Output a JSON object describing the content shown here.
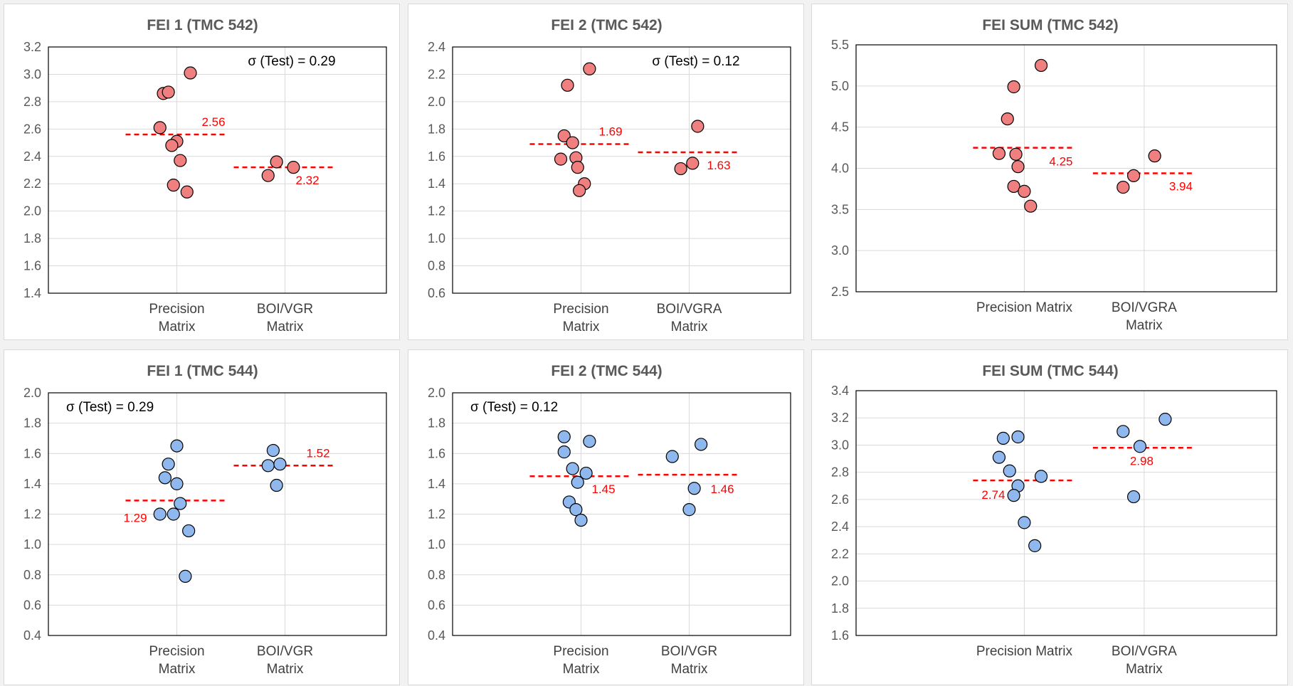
{
  "colors": {
    "pink_fill": "#f08080",
    "blue_fill": "#8fb8ee",
    "mean_line": "#ff0000",
    "point_stroke": "#000000",
    "grid": "#d9d9d9"
  },
  "chart_data": [
    {
      "type": "scatter",
      "title": "FEI 1 (TMC 542)",
      "ylim": [
        1.4,
        3.2
      ],
      "ystep": 0.2,
      "ydecimals": 1,
      "ticks": [
        "1.4",
        "1.6",
        "1.8",
        "2.0",
        "2.2",
        "2.4",
        "2.6",
        "2.8",
        "3.0",
        "3.2"
      ],
      "categories": [
        [
          "Precision",
          "Matrix"
        ],
        [
          "BOI/VGR",
          "Matrix"
        ]
      ],
      "point_color": "pink",
      "annotation": "σ (Test) = 0.29",
      "series": [
        {
          "points": [
            [
              -0.08,
              2.86
            ],
            [
              -0.05,
              2.87
            ],
            [
              0.08,
              3.01
            ],
            [
              -0.1,
              2.61
            ],
            [
              0.0,
              2.51
            ],
            [
              -0.03,
              2.48
            ],
            [
              0.02,
              2.37
            ],
            [
              -0.02,
              2.19
            ],
            [
              0.06,
              2.14
            ]
          ],
          "mean": 2.56,
          "mean_label": "2.56"
        },
        {
          "points": [
            [
              -0.1,
              2.26
            ],
            [
              -0.05,
              2.36
            ],
            [
              0.05,
              2.32
            ]
          ],
          "mean": 2.32,
          "mean_label": "2.32"
        }
      ]
    },
    {
      "type": "scatter",
      "title": "FEI 2 (TMC 542)",
      "ylim": [
        0.6,
        2.4
      ],
      "ystep": 0.2,
      "ydecimals": 1,
      "ticks": [
        "0.6",
        "0.8",
        "1.0",
        "1.2",
        "1.4",
        "1.6",
        "1.8",
        "2.0",
        "2.2",
        "2.4"
      ],
      "categories": [
        [
          "Precision",
          "Matrix"
        ],
        [
          "BOI/VGRA",
          "Matrix"
        ]
      ],
      "point_color": "pink",
      "annotation": "σ (Test) = 0.12",
      "series": [
        {
          "points": [
            [
              -0.08,
              2.12
            ],
            [
              0.05,
              2.24
            ],
            [
              -0.1,
              1.75
            ],
            [
              -0.05,
              1.7
            ],
            [
              -0.12,
              1.58
            ],
            [
              -0.03,
              1.59
            ],
            [
              -0.02,
              1.52
            ],
            [
              0.02,
              1.4
            ],
            [
              -0.01,
              1.35
            ]
          ],
          "mean": 1.69,
          "mean_label": "1.69"
        },
        {
          "points": [
            [
              -0.05,
              1.51
            ],
            [
              0.02,
              1.55
            ],
            [
              0.05,
              1.82
            ]
          ],
          "mean": 1.63,
          "mean_label": "1.63"
        }
      ]
    },
    {
      "type": "scatter",
      "title": "FEI SUM (TMC 542)",
      "ylim": [
        2.5,
        5.5
      ],
      "ystep": 0.5,
      "ydecimals": 1,
      "ticks": [
        "2.5",
        "3.0",
        "3.5",
        "4.0",
        "4.5",
        "5.0",
        "5.5"
      ],
      "categories": [
        [
          "Precision Matrix"
        ],
        [
          "BOI/VGRA",
          "Matrix"
        ]
      ],
      "point_color": "pink",
      "annotation": "",
      "series": [
        {
          "points": [
            [
              0.08,
              5.25
            ],
            [
              -0.05,
              4.99
            ],
            [
              -0.08,
              4.6
            ],
            [
              -0.12,
              4.18
            ],
            [
              -0.04,
              4.17
            ],
            [
              -0.03,
              4.02
            ],
            [
              -0.05,
              3.78
            ],
            [
              0.0,
              3.72
            ],
            [
              0.03,
              3.54
            ]
          ],
          "mean": 4.25,
          "mean_label": "4.25"
        },
        {
          "points": [
            [
              0.05,
              4.15
            ],
            [
              -0.05,
              3.91
            ],
            [
              -0.1,
              3.77
            ]
          ],
          "mean": 3.94,
          "mean_label": "3.94"
        }
      ]
    },
    {
      "type": "scatter",
      "title": "FEI 1 (TMC 544)",
      "ylim": [
        0.4,
        2.0
      ],
      "ystep": 0.2,
      "ydecimals": 1,
      "ticks": [
        "0.4",
        "0.6",
        "0.8",
        "1.0",
        "1.2",
        "1.4",
        "1.6",
        "1.8",
        "2.0"
      ],
      "categories": [
        [
          "Precision",
          "Matrix"
        ],
        [
          "BOI/VGR",
          "Matrix"
        ]
      ],
      "point_color": "blue",
      "annotation": "σ (Test) = 0.29",
      "series": [
        {
          "points": [
            [
              0.0,
              1.65
            ],
            [
              -0.05,
              1.53
            ],
            [
              -0.07,
              1.44
            ],
            [
              0.0,
              1.4
            ],
            [
              0.02,
              1.27
            ],
            [
              -0.1,
              1.2
            ],
            [
              -0.02,
              1.2
            ],
            [
              0.07,
              1.09
            ],
            [
              0.05,
              0.79
            ]
          ],
          "mean": 1.29,
          "mean_label": "1.29"
        },
        {
          "points": [
            [
              -0.07,
              1.62
            ],
            [
              -0.1,
              1.52
            ],
            [
              -0.03,
              1.53
            ],
            [
              -0.05,
              1.39
            ]
          ],
          "mean": 1.52,
          "mean_label": "1.52"
        }
      ]
    },
    {
      "type": "scatter",
      "title": "FEI 2 (TMC 544)",
      "ylim": [
        0.4,
        2.0
      ],
      "ystep": 0.2,
      "ydecimals": 1,
      "ticks": [
        "0.4",
        "0.6",
        "0.8",
        "1.0",
        "1.2",
        "1.4",
        "1.6",
        "1.8",
        "2.0"
      ],
      "categories": [
        [
          "Precision",
          "Matrix"
        ],
        [
          "BOI/VGR",
          "Matrix"
        ]
      ],
      "point_color": "blue",
      "annotation": "σ (Test) = 0.12",
      "series": [
        {
          "points": [
            [
              -0.1,
              1.71
            ],
            [
              0.05,
              1.68
            ],
            [
              -0.1,
              1.61
            ],
            [
              -0.05,
              1.5
            ],
            [
              0.03,
              1.47
            ],
            [
              -0.02,
              1.41
            ],
            [
              -0.07,
              1.28
            ],
            [
              -0.03,
              1.23
            ],
            [
              0.0,
              1.16
            ]
          ],
          "mean": 1.45,
          "mean_label": "1.45"
        },
        {
          "points": [
            [
              -0.1,
              1.58
            ],
            [
              0.07,
              1.66
            ],
            [
              0.03,
              1.37
            ],
            [
              0.0,
              1.23
            ]
          ],
          "mean": 1.46,
          "mean_label": "1.46"
        }
      ]
    },
    {
      "type": "scatter",
      "title": "FEI SUM (TMC 544)",
      "ylim": [
        1.6,
        3.4
      ],
      "ystep": 0.2,
      "ydecimals": 1,
      "ticks": [
        "1.6",
        "1.8",
        "2.0",
        "2.2",
        "2.4",
        "2.6",
        "2.8",
        "3.0",
        "3.2",
        "3.4"
      ],
      "categories": [
        [
          "Precision Matrix"
        ],
        [
          "BOI/VGRA",
          "Matrix"
        ]
      ],
      "point_color": "blue",
      "annotation": "",
      "series": [
        {
          "points": [
            [
              -0.1,
              3.05
            ],
            [
              -0.03,
              3.06
            ],
            [
              -0.12,
              2.91
            ],
            [
              -0.07,
              2.81
            ],
            [
              0.08,
              2.77
            ],
            [
              -0.03,
              2.7
            ],
            [
              -0.05,
              2.63
            ],
            [
              0.0,
              2.43
            ],
            [
              0.05,
              2.26
            ]
          ],
          "mean": 2.74,
          "mean_label": "2.74"
        },
        {
          "points": [
            [
              -0.1,
              3.1
            ],
            [
              0.1,
              3.19
            ],
            [
              -0.02,
              2.99
            ],
            [
              -0.05,
              2.62
            ]
          ],
          "mean": 2.98,
          "mean_label": "2.98"
        }
      ]
    }
  ]
}
